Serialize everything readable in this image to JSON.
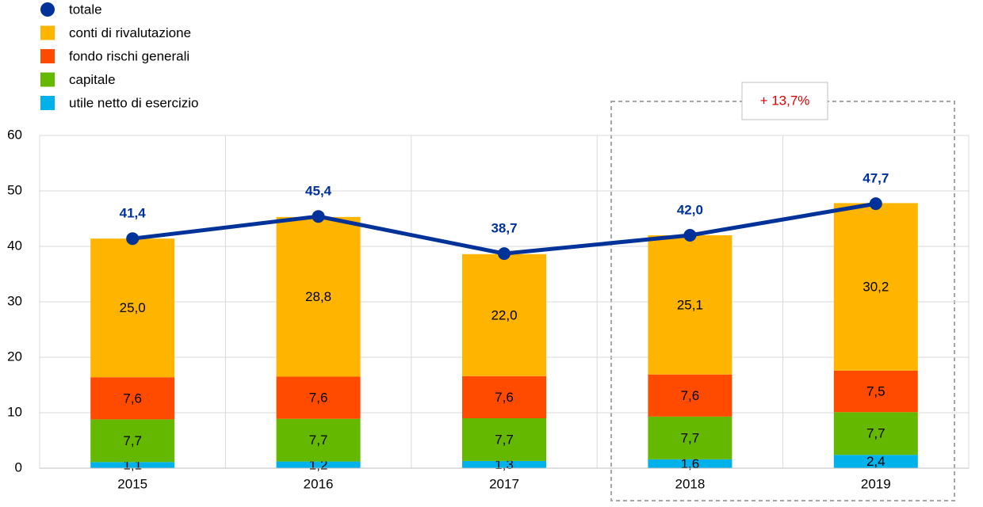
{
  "chart_data": {
    "type": "bar",
    "stacked": true,
    "categories": [
      "2015",
      "2016",
      "2017",
      "2018",
      "2019"
    ],
    "series": [
      {
        "name": "utile netto di esercizio",
        "color": "#00b1ea",
        "values": [
          1.1,
          1.2,
          1.3,
          1.6,
          2.4
        ],
        "value_labels": [
          "1,1",
          "1,2",
          "1,3",
          "1,6",
          "2,4"
        ]
      },
      {
        "name": "capitale",
        "color": "#65b800",
        "values": [
          7.7,
          7.7,
          7.7,
          7.7,
          7.7
        ],
        "value_labels": [
          "7,7",
          "7,7",
          "7,7",
          "7,7",
          "7,7"
        ]
      },
      {
        "name": "fondo rischi generali",
        "color": "#ff4b00",
        "values": [
          7.6,
          7.6,
          7.6,
          7.6,
          7.5
        ],
        "value_labels": [
          "7,6",
          "7,6",
          "7,6",
          "7,6",
          "7,5"
        ]
      },
      {
        "name": "conti di rivalutazione",
        "color": "#ffb400",
        "values": [
          25.0,
          28.8,
          22.0,
          25.1,
          30.2
        ],
        "value_labels": [
          "25,0",
          "28,8",
          "22,0",
          "25,1",
          "30,2"
        ]
      },
      {
        "name": "totale",
        "type": "line",
        "color": "#003299",
        "values": [
          41.4,
          45.4,
          38.7,
          42.0,
          47.7
        ],
        "value_labels": [
          "41,4",
          "45,4",
          "38,7",
          "42,0",
          "47,7"
        ]
      }
    ],
    "legend_order": [
      4,
      3,
      2,
      1,
      0
    ],
    "annotation": "+ 13,7%",
    "annotation_color": "#e00000",
    "ylim": [
      0,
      60
    ],
    "yticks": [
      0,
      10,
      20,
      30,
      40,
      50,
      60
    ],
    "grid": true
  }
}
